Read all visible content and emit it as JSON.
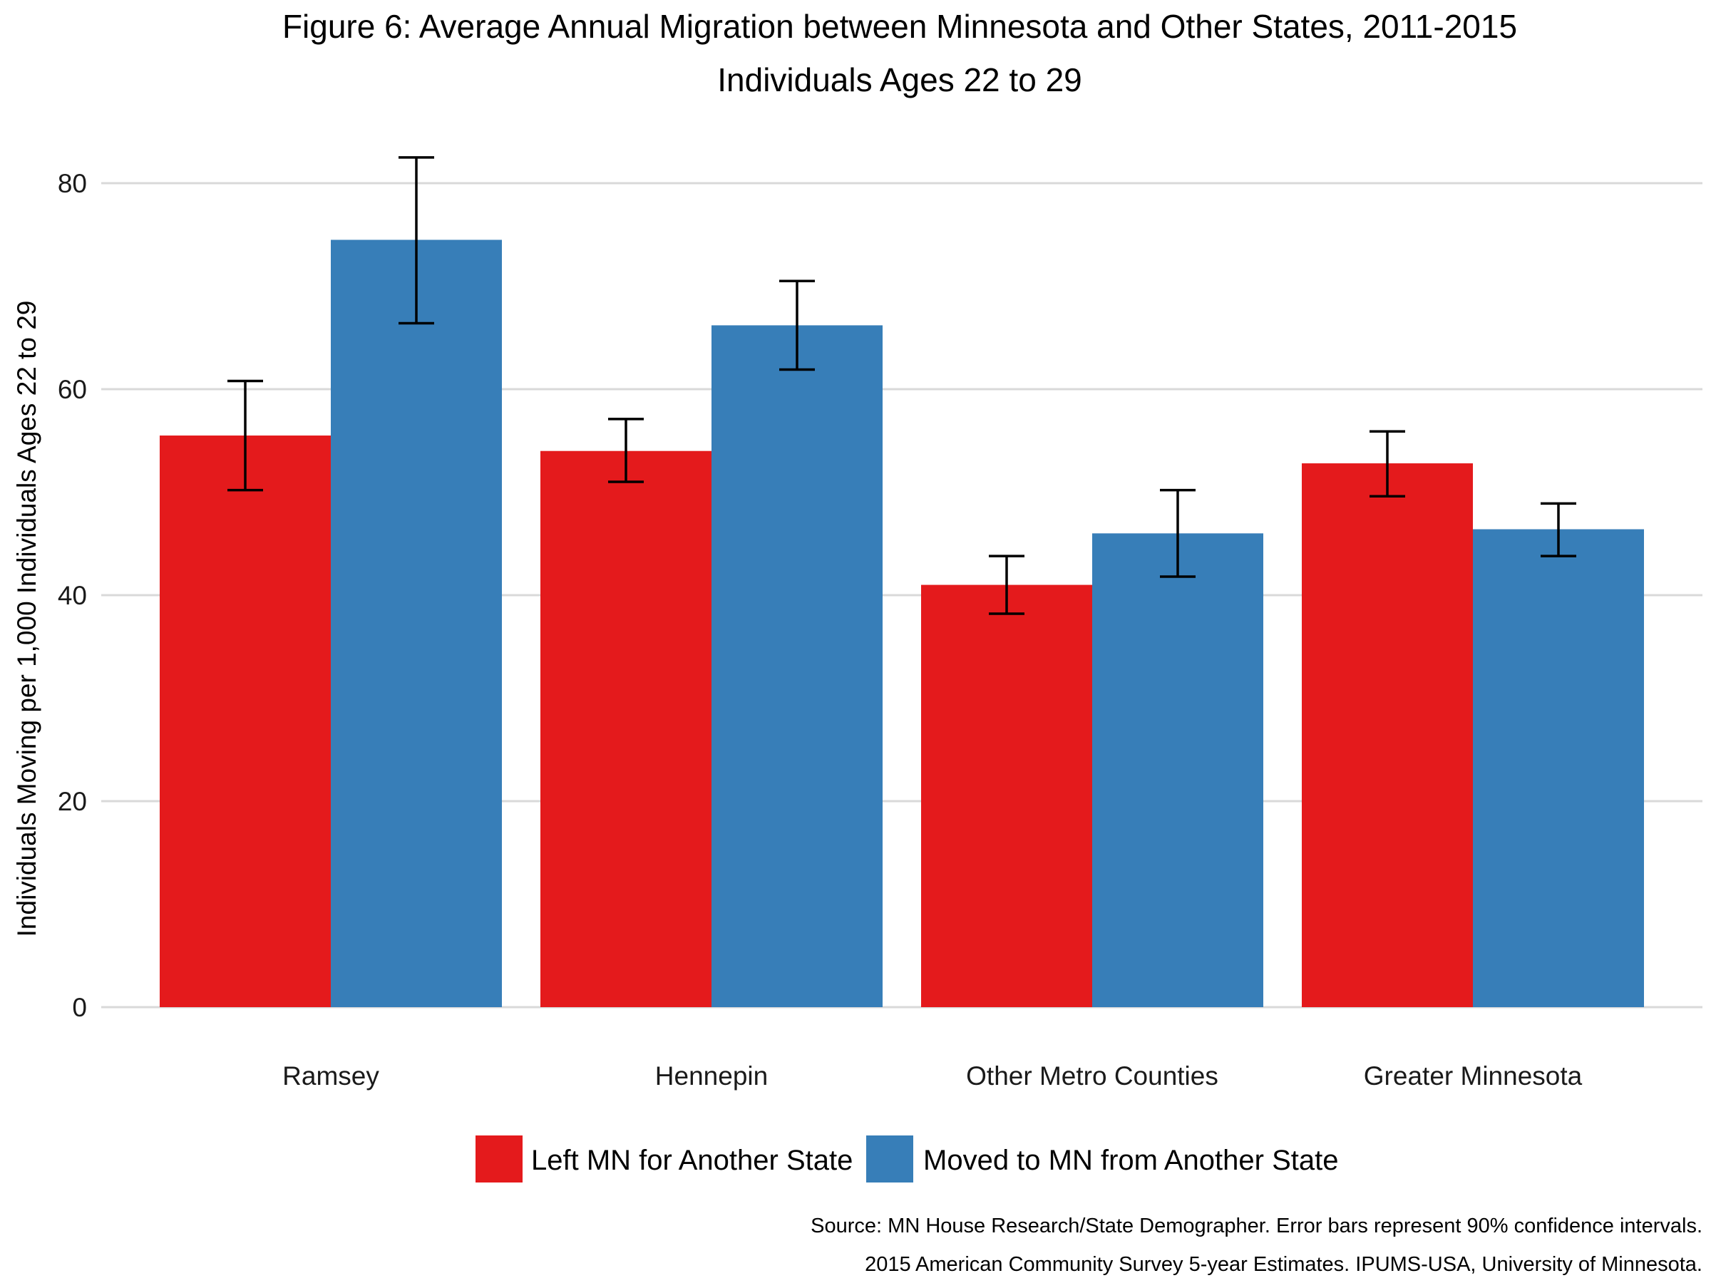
{
  "chart_data": {
    "type": "bar",
    "title": "Figure 6: Average Annual Migration between Minnesota and Other States, 2011-2015",
    "subtitle": "Individuals Ages 22 to 29",
    "xlabel": "",
    "ylabel": "Individuals Moving per 1,000 Individuals Ages 22 to 29",
    "ylim": [
      0,
      85
    ],
    "yticks": [
      0,
      20,
      40,
      60,
      80
    ],
    "grid": true,
    "legend_position": "bottom",
    "categories": [
      "Ramsey",
      "Hennepin",
      "Other Metro Counties",
      "Greater Minnesota"
    ],
    "series": [
      {
        "name": "Left MN for Another State",
        "color": "#e41a1c",
        "values": [
          55.5,
          54.0,
          41.0,
          52.8
        ],
        "error_low": [
          50.2,
          51.0,
          38.2,
          49.6
        ],
        "error_high": [
          60.8,
          57.1,
          43.8,
          55.9
        ]
      },
      {
        "name": "Moved to MN from Another State",
        "color": "#377eb8",
        "values": [
          74.5,
          66.2,
          46.0,
          46.4
        ],
        "error_low": [
          66.4,
          61.9,
          41.8,
          43.8
        ],
        "error_high": [
          82.5,
          70.5,
          50.2,
          48.9
        ]
      }
    ],
    "caption": [
      "Source: MN House Research/State Demographer. Error bars represent 90% confidence intervals.",
      "2015 American Community Survey 5-year Estimates. IPUMS-USA, University of Minnesota."
    ]
  }
}
